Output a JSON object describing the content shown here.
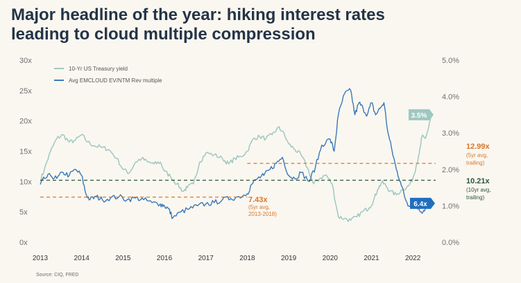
{
  "title": {
    "line1": "Major headline of the year: hiking interest rates",
    "line2": "leading to cloud multiple compression"
  },
  "source": "Source: CIQ, FRED",
  "colors": {
    "treasury": "#9ec8c2",
    "multiple": "#3a78b8",
    "avg5_trailing": "#d8762a",
    "avg10": "#2c5532",
    "axis_text": "#6f6f6f",
    "background": "#faf7f0"
  },
  "chart_data": {
    "type": "line",
    "x_ticks": [
      "2013",
      "2014",
      "2015",
      "2016",
      "2017",
      "2018",
      "2019",
      "2020",
      "2021",
      "2022"
    ],
    "xlim": [
      2013.0,
      2022.45
    ],
    "y_left": {
      "ticks": [
        "0x",
        "5x",
        "10x",
        "15x",
        "20x",
        "25x",
        "30x"
      ],
      "lim": [
        0,
        30
      ]
    },
    "y_right": {
      "ticks": [
        "0.0%",
        "1.0%",
        "2.0%",
        "3.0%",
        "4.0%",
        "5.0%"
      ],
      "lim": [
        0,
        5
      ]
    },
    "legend": {
      "position": "top-left",
      "items": [
        "10-Yr US Treasury yield",
        "Avg EMCLOUD EV/NTM Rev multiple"
      ]
    },
    "series": [
      {
        "name": "10-Yr US Treasury yield",
        "axis": "right",
        "x": [
          2013.0,
          2013.1,
          2013.25,
          2013.4,
          2013.55,
          2013.7,
          2013.85,
          2014.0,
          2014.15,
          2014.3,
          2014.5,
          2014.65,
          2014.85,
          2015.0,
          2015.15,
          2015.3,
          2015.45,
          2015.6,
          2015.75,
          2015.9,
          2016.0,
          2016.15,
          2016.3,
          2016.45,
          2016.55,
          2016.7,
          2016.85,
          2017.0,
          2017.2,
          2017.4,
          2017.55,
          2017.7,
          2017.85,
          2018.0,
          2018.15,
          2018.3,
          2018.45,
          2018.6,
          2018.75,
          2018.85,
          2019.0,
          2019.15,
          2019.3,
          2019.45,
          2019.6,
          2019.75,
          2019.9,
          2020.05,
          2020.2,
          2020.35,
          2020.5,
          2020.65,
          2020.8,
          2020.95,
          2021.05,
          2021.15,
          2021.25,
          2021.35,
          2021.45,
          2021.6,
          2021.75,
          2021.9,
          2022.0,
          2022.08,
          2022.15,
          2022.22,
          2022.3,
          2022.37,
          2022.45
        ],
        "values": [
          1.7,
          2.0,
          2.5,
          2.85,
          2.95,
          2.75,
          2.8,
          2.95,
          2.75,
          2.65,
          2.6,
          2.55,
          2.3,
          2.0,
          1.9,
          2.2,
          2.3,
          2.2,
          2.15,
          2.2,
          1.95,
          1.8,
          1.6,
          1.4,
          1.5,
          1.6,
          2.2,
          2.45,
          2.4,
          2.3,
          2.15,
          2.3,
          2.35,
          2.5,
          2.85,
          2.9,
          2.85,
          2.95,
          3.15,
          3.05,
          2.7,
          2.55,
          2.4,
          2.05,
          1.6,
          1.75,
          1.85,
          1.6,
          0.7,
          0.65,
          0.6,
          0.7,
          0.85,
          0.95,
          1.15,
          1.45,
          1.65,
          1.55,
          1.4,
          1.3,
          1.45,
          1.55,
          1.75,
          2.1,
          2.4,
          2.9,
          2.85,
          3.1,
          3.5
        ]
      },
      {
        "name": "Avg EMCLOUD EV/NTM Rev multiple",
        "axis": "left",
        "x": [
          2013.0,
          2013.1,
          2013.25,
          2013.4,
          2013.55,
          2013.7,
          2013.85,
          2014.0,
          2014.1,
          2014.2,
          2014.35,
          2014.5,
          2014.7,
          2014.9,
          2015.1,
          2015.3,
          2015.5,
          2015.7,
          2015.9,
          2016.0,
          2016.1,
          2016.2,
          2016.4,
          2016.6,
          2016.8,
          2017.0,
          2017.2,
          2017.4,
          2017.6,
          2017.8,
          2018.0,
          2018.1,
          2018.25,
          2018.4,
          2018.55,
          2018.7,
          2018.85,
          2019.0,
          2019.15,
          2019.3,
          2019.5,
          2019.65,
          2019.8,
          2020.0,
          2020.1,
          2020.2,
          2020.35,
          2020.5,
          2020.6,
          2020.7,
          2020.8,
          2020.9,
          2021.0,
          2021.1,
          2021.2,
          2021.3,
          2021.4,
          2021.5,
          2021.6,
          2021.7,
          2021.8,
          2021.9,
          2022.0,
          2022.1,
          2022.2,
          2022.3,
          2022.45
        ],
        "values": [
          9.5,
          10.5,
          11.0,
          10.5,
          11.5,
          11.0,
          12.0,
          11.0,
          8.0,
          7.0,
          7.5,
          7.0,
          7.3,
          7.5,
          7.0,
          7.3,
          7.0,
          6.5,
          6.3,
          6.0,
          5.5,
          4.0,
          5.0,
          5.5,
          6.0,
          6.3,
          6.5,
          7.0,
          7.2,
          7.5,
          8.0,
          9.5,
          10.5,
          11.0,
          12.0,
          13.0,
          14.0,
          11.0,
          10.5,
          11.5,
          10.0,
          12.5,
          16.0,
          17.0,
          15.0,
          21.0,
          24.5,
          25.0,
          21.0,
          23.0,
          22.0,
          21.0,
          23.0,
          21.0,
          22.0,
          23.0,
          18.0,
          15.0,
          12.0,
          10.0,
          7.5,
          6.0,
          7.0,
          6.0,
          5.0,
          5.5,
          6.4
        ]
      }
    ],
    "reference_lines": [
      {
        "name": "5yr avg 2013-2018",
        "value": 7.43,
        "axis": "left",
        "x_range": [
          2013.0,
          2018.0
        ],
        "label": "7.43x",
        "note": [
          "(5yr avg,",
          "2013-2018)"
        ]
      },
      {
        "name": "5yr avg trailing",
        "value": 12.99,
        "axis": "left",
        "x_range": [
          2018.0,
          2022.45
        ],
        "label": "12.99x",
        "note": [
          "(5yr avg,",
          "trailing)"
        ]
      },
      {
        "name": "10yr avg trailing",
        "value": 10.21,
        "axis": "left",
        "x_range": [
          2013.0,
          2022.45
        ],
        "label": "10.21x",
        "note": [
          "(10yr avg,",
          "trailing)"
        ]
      }
    ],
    "end_labels": {
      "treasury": "3.5%",
      "multiple": "6.4x"
    }
  }
}
